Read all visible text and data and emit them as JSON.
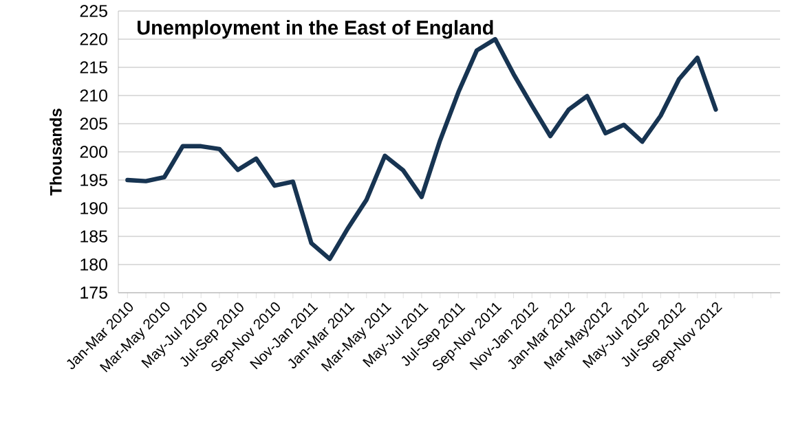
{
  "chart_data": {
    "type": "line",
    "title": "Unemployment in the East of England",
    "ylabel": "Thousands",
    "categories": [
      "Jan-Mar 2010",
      null,
      "Mar-May 2010",
      null,
      "May-Jul 2010",
      null,
      "Jul-Sep 2010",
      null,
      "Sep-Nov 2010",
      null,
      "Nov-Jan 2011",
      null,
      "Jan-Mar 2011",
      null,
      "Mar-May 2011",
      null,
      "May-Jul 2011",
      null,
      "Jul-Sep 2011",
      null,
      "Sep-Nov 2011",
      null,
      "Nov-Jan 2012",
      null,
      "Jan-Mar 2012",
      null,
      "Mar-May2012",
      null,
      "May-Jul 2012",
      null,
      "Jul-Sep 2012",
      null,
      "Sep-Nov 2012",
      null,
      null,
      null
    ],
    "values": [
      195,
      194.8,
      195.5,
      201,
      201,
      200.5,
      196.8,
      198.8,
      194,
      194.7,
      183.8,
      181,
      186.5,
      191.5,
      199.3,
      196.7,
      192,
      202,
      210.6,
      218,
      220,
      213.8,
      208.2,
      202.8,
      207.5,
      209.9,
      203.3,
      204.8,
      201.8,
      206.4,
      212.9,
      216.7,
      207.5,
      null,
      null,
      null
    ],
    "color": "#173452",
    "ylim": [
      175,
      225
    ],
    "yticks": [
      175,
      180,
      185,
      190,
      195,
      200,
      205,
      210,
      215,
      220,
      225
    ],
    "grid": "y",
    "marker": "none",
    "line_style": "solid"
  }
}
